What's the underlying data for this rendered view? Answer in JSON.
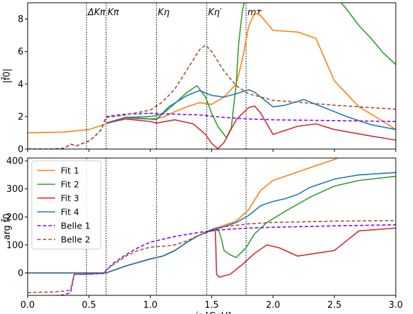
{
  "chart_data": [
    {
      "type": "line",
      "panel": "top",
      "ylabel": "|f̃0|",
      "xlim": [
        0.0,
        3.0
      ],
      "ylim": [
        0,
        9
      ],
      "yticks": [
        "0",
        "2",
        "4",
        "6",
        "8"
      ],
      "vlines": [
        {
          "x": 0.48,
          "label": "ΔKπ"
        },
        {
          "x": 0.64,
          "label": "Kπ"
        },
        {
          "x": 1.05,
          "label": "Kη"
        },
        {
          "x": 1.46,
          "label": "Kη′"
        },
        {
          "x": 1.78,
          "label": "mτ"
        }
      ],
      "series": [
        {
          "name": "Fit 1",
          "color": "#ff7f0e",
          "dash": "solid",
          "x": [
            0.0,
            0.3,
            0.5,
            0.64,
            0.8,
            1.0,
            1.1,
            1.2,
            1.3,
            1.4,
            1.5,
            1.6,
            1.7,
            1.75,
            1.8,
            1.85,
            1.9,
            2.0,
            2.2,
            2.35,
            2.5,
            2.7,
            2.9,
            3.0
          ],
          "y": [
            1.0,
            1.05,
            1.2,
            1.55,
            1.9,
            1.85,
            1.95,
            2.3,
            2.6,
            2.85,
            2.75,
            3.2,
            4.0,
            5.5,
            7.5,
            8.4,
            8.2,
            7.3,
            7.2,
            6.8,
            4.2,
            2.6,
            1.7,
            1.2
          ]
        },
        {
          "name": "Fit 2",
          "color": "#2ca02c",
          "dash": "solid",
          "x": [
            0.64,
            0.8,
            1.0,
            1.1,
            1.2,
            1.3,
            1.38,
            1.45,
            1.5,
            1.55,
            1.62,
            1.66,
            1.7,
            1.72,
            1.75,
            1.78,
            2.5,
            2.6,
            2.7,
            2.8,
            2.9,
            3.0
          ],
          "y": [
            1.6,
            1.95,
            2.0,
            2.15,
            2.8,
            3.5,
            3.9,
            3.2,
            2.2,
            1.4,
            0.7,
            1.3,
            4.0,
            6.5,
            8.5,
            9.5,
            9.5,
            8.6,
            7.6,
            6.8,
            5.9,
            5.2
          ]
        },
        {
          "name": "Fit 3",
          "color": "#d62728",
          "dash": "solid",
          "x": [
            0.64,
            0.8,
            1.0,
            1.05,
            1.2,
            1.35,
            1.45,
            1.5,
            1.55,
            1.6,
            1.7,
            1.8,
            1.85,
            1.9,
            2.0,
            2.2,
            2.35,
            2.5,
            2.8,
            3.0
          ],
          "y": [
            1.6,
            1.85,
            1.7,
            1.6,
            1.8,
            1.55,
            0.9,
            0.35,
            0.02,
            0.4,
            1.8,
            2.55,
            2.65,
            2.2,
            0.9,
            1.4,
            1.55,
            1.2,
            0.8,
            0.55
          ]
        },
        {
          "name": "Fit 4",
          "color": "#1f77b4",
          "dash": "solid",
          "x": [
            0.64,
            0.8,
            1.0,
            1.05,
            1.15,
            1.3,
            1.4,
            1.5,
            1.6,
            1.7,
            1.8,
            1.85,
            1.9,
            2.0,
            2.1,
            2.25,
            2.4,
            2.6,
            2.8,
            3.0
          ],
          "y": [
            1.6,
            1.95,
            1.85,
            1.8,
            2.6,
            3.3,
            3.6,
            3.3,
            3.2,
            3.4,
            3.65,
            3.5,
            3.2,
            2.6,
            2.7,
            3.05,
            2.6,
            2.0,
            1.5,
            1.2
          ]
        },
        {
          "name": "Belle 1",
          "color": "#7f00ff",
          "dash": "dashed",
          "x": [
            0.0,
            0.2,
            0.3,
            0.35,
            0.4,
            0.5,
            0.55,
            0.6,
            0.64,
            0.8,
            1.0,
            1.2,
            1.4,
            1.6,
            1.8,
            2.0,
            2.5,
            3.0
          ],
          "y": [
            0.0,
            0.01,
            0.05,
            0.3,
            0.2,
            0.5,
            0.8,
            1.2,
            2.0,
            2.15,
            2.2,
            2.15,
            2.1,
            1.95,
            1.85,
            1.8,
            1.75,
            1.7
          ]
        },
        {
          "name": "Belle 2",
          "color": "#a0522d",
          "dash": "dashed",
          "x": [
            0.0,
            0.2,
            0.3,
            0.35,
            0.4,
            0.5,
            0.55,
            0.6,
            0.64,
            0.8,
            1.0,
            1.1,
            1.2,
            1.3,
            1.4,
            1.45,
            1.5,
            1.6,
            1.7,
            1.8,
            2.0,
            2.5,
            3.0
          ],
          "y": [
            0.0,
            0.01,
            0.05,
            0.3,
            0.2,
            0.5,
            0.8,
            1.2,
            1.95,
            2.1,
            2.4,
            2.9,
            3.7,
            4.9,
            6.1,
            6.4,
            6.0,
            4.8,
            3.9,
            3.4,
            3.0,
            2.7,
            2.45
          ]
        }
      ]
    },
    {
      "type": "line",
      "panel": "bottom",
      "ylabel": "arg f̃0",
      "xlabel": "√s [GeV]",
      "xlim": [
        0.0,
        3.0
      ],
      "ylim": [
        -80,
        410
      ],
      "yticks": [
        "0",
        "100",
        "200",
        "300",
        "400"
      ],
      "xticks": [
        "0.0",
        "0.5",
        "1.0",
        "1.5",
        "2.0",
        "2.5",
        "3.0"
      ],
      "legend": {
        "placement": "top-left",
        "entries": [
          "Fit 1",
          "Fit 2",
          "Fit 3",
          "Fit 4",
          "Belle 1",
          "Belle 2"
        ]
      },
      "series": [
        {
          "name": "Fit 1",
          "color": "#ff7f0e",
          "dash": "solid",
          "x": [
            0.0,
            0.64,
            0.8,
            1.0,
            1.1,
            1.2,
            1.3,
            1.4,
            1.5,
            1.6,
            1.7,
            1.8,
            1.9,
            2.0,
            2.2,
            2.4,
            2.5,
            2.58
          ],
          "y": [
            0,
            0,
            25,
            50,
            60,
            80,
            110,
            135,
            155,
            170,
            185,
            225,
            295,
            330,
            360,
            390,
            405,
            420
          ]
        },
        {
          "name": "Fit 2",
          "color": "#2ca02c",
          "dash": "solid",
          "x": [
            0.0,
            0.64,
            0.8,
            1.0,
            1.1,
            1.2,
            1.3,
            1.4,
            1.5,
            1.55,
            1.58,
            1.6,
            1.65,
            1.7,
            1.78,
            1.85,
            1.95,
            2.1,
            2.3,
            2.5,
            2.7,
            3.0
          ],
          "y": [
            0,
            0,
            25,
            50,
            60,
            80,
            110,
            135,
            155,
            160,
            120,
            80,
            65,
            55,
            90,
            140,
            180,
            220,
            270,
            310,
            330,
            345
          ]
        },
        {
          "name": "Fit 3",
          "color": "#d62728",
          "dash": "solid",
          "x": [
            0.0,
            0.64,
            0.8,
            1.0,
            1.1,
            1.2,
            1.3,
            1.4,
            1.5,
            1.53,
            1.54,
            1.56,
            1.65,
            1.75,
            1.85,
            1.95,
            2.05,
            2.2,
            2.5,
            2.7,
            3.0
          ],
          "y": [
            0,
            0,
            25,
            50,
            60,
            80,
            110,
            135,
            152,
            155,
            -5,
            -15,
            -5,
            30,
            70,
            100,
            90,
            60,
            80,
            150,
            160
          ]
        },
        {
          "name": "Fit 4",
          "color": "#1f77b4",
          "dash": "solid",
          "x": [
            0.0,
            0.64,
            0.8,
            1.0,
            1.1,
            1.2,
            1.3,
            1.4,
            1.5,
            1.6,
            1.7,
            1.8,
            1.9,
            2.0,
            2.1,
            2.2,
            2.3,
            2.5,
            2.7,
            3.0
          ],
          "y": [
            0,
            0,
            25,
            50,
            60,
            80,
            110,
            135,
            155,
            165,
            180,
            205,
            240,
            255,
            265,
            280,
            305,
            335,
            350,
            358
          ]
        },
        {
          "name": "Belle 1",
          "color": "#7f00ff",
          "dash": "dashed",
          "x": [
            0.0,
            0.2,
            0.3,
            0.35,
            0.38,
            0.45,
            0.55,
            0.62,
            0.64,
            0.7,
            0.8,
            0.9,
            1.0,
            1.2,
            1.4,
            1.6,
            1.8,
            2.0,
            2.5,
            3.0
          ],
          "y": [
            -85,
            -82,
            -78,
            -70,
            -5,
            -5,
            -3,
            -2,
            10,
            35,
            65,
            90,
            110,
            130,
            145,
            155,
            160,
            163,
            168,
            172
          ]
        },
        {
          "name": "Belle 2",
          "color": "#a0522d",
          "dash": "dashed",
          "x": [
            0.0,
            0.2,
            0.3,
            0.35,
            0.38,
            0.45,
            0.55,
            0.62,
            0.64,
            0.7,
            0.8,
            0.9,
            1.0,
            1.1,
            1.2,
            1.3,
            1.4,
            1.5,
            1.6,
            1.8,
            2.0,
            2.5,
            3.0
          ],
          "y": [
            -70,
            -68,
            -65,
            -60,
            -5,
            -5,
            -3,
            -2,
            10,
            30,
            60,
            80,
            92,
            95,
            100,
            115,
            135,
            150,
            165,
            175,
            180,
            185,
            187
          ]
        }
      ]
    }
  ]
}
